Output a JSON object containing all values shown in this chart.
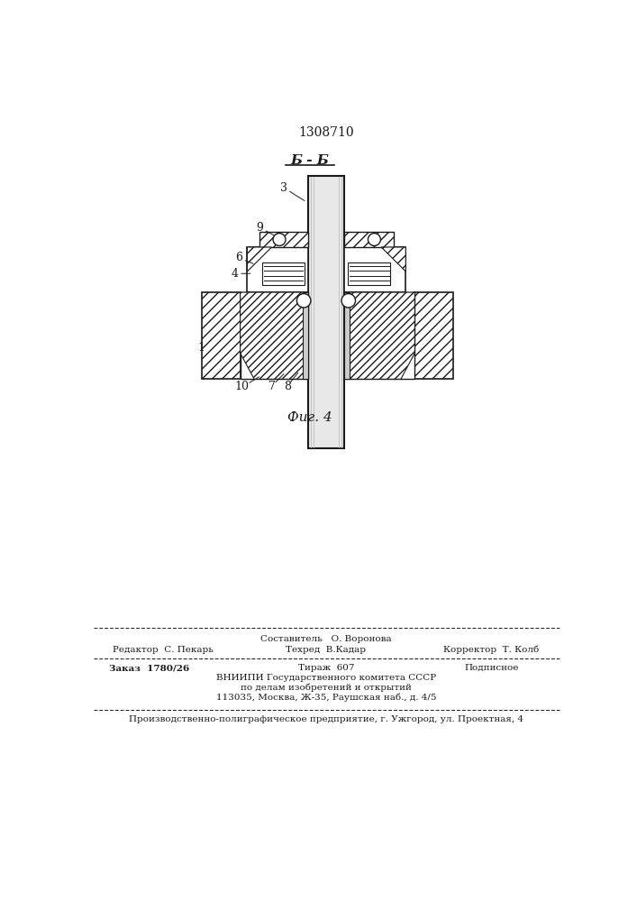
{
  "patent_number": "1308710",
  "section_label": "Б - Б",
  "figure_label": "Фиг. 4",
  "bg_color": "#ffffff",
  "line_color": "#1a1a1a",
  "footer_line1_center_top": "Составитель   О. Воронова",
  "footer_line1_left": "Редактор  С. Пекарь",
  "footer_line1_center": "Техред  В.Кадар",
  "footer_line1_right": "Корректор  Т. Колб",
  "footer_line2_left": "Заказ  1780/26",
  "footer_line2_center": "Тираж  607",
  "footer_line2_right": "Подписное",
  "footer_line3": "ВНИИПИ Государственного комитета СССР",
  "footer_line4": "по делам изобретений и открытий",
  "footer_line5": "113035, Москва, Ж-35, Раушская наб., д. 4/5",
  "footer_line6": "Производственно-полиграфическое предприятие, г. Ужгород, ул. Проектная, 4"
}
